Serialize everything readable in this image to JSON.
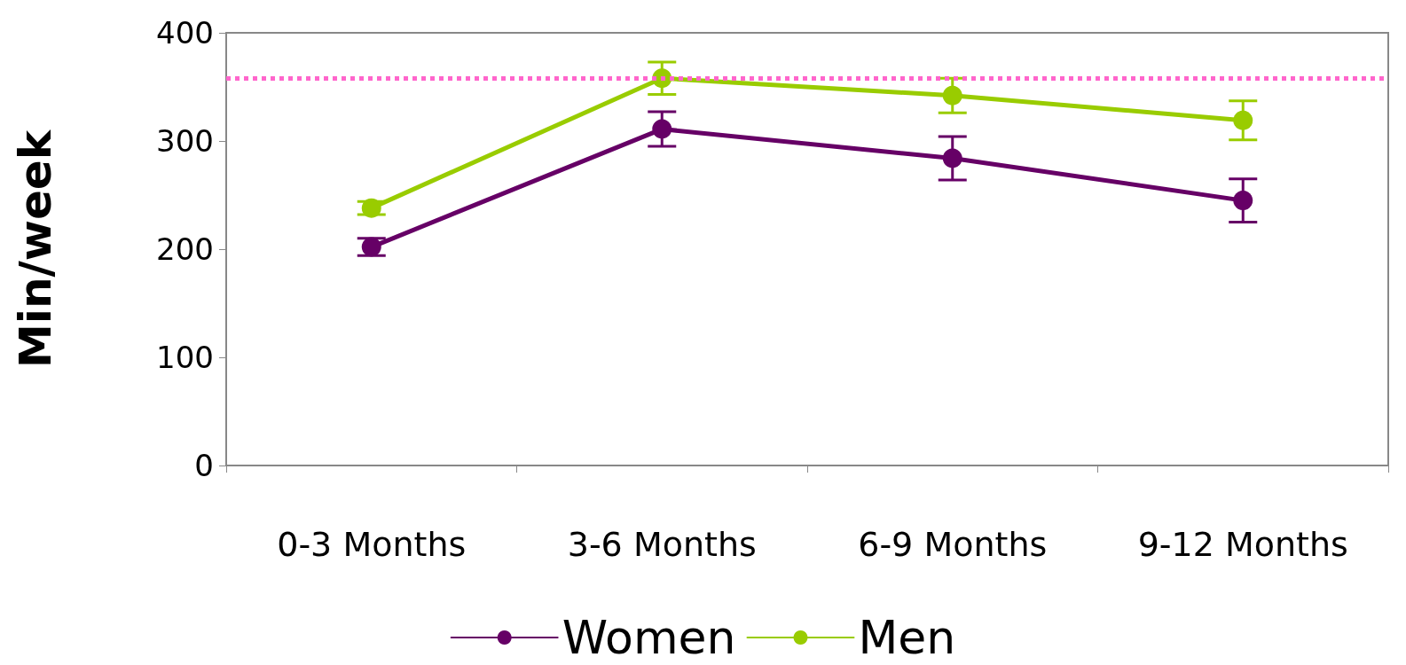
{
  "chart_data": {
    "type": "line",
    "ylabel": "Min/week",
    "categories": [
      "0-3 Months",
      "3-6 Months",
      "6-9 Months",
      "9-12 Months"
    ],
    "series": [
      {
        "name": "Women",
        "color": "#660066",
        "values": [
          202,
          311,
          284,
          245
        ],
        "errors": [
          8,
          16,
          20,
          20
        ]
      },
      {
        "name": "Men",
        "color": "#99cc00",
        "values": [
          238,
          358,
          342,
          319
        ],
        "errors": [
          6,
          15,
          16,
          18
        ]
      }
    ],
    "ylim": [
      0,
      400
    ],
    "yticks": [
      0,
      100,
      200,
      300,
      400
    ],
    "grid": false,
    "legend": "bottom",
    "marker": "circle",
    "line_style": "solid",
    "ref_lines": [
      {
        "axis": "y",
        "value": 358,
        "color": "#ff66cc",
        "line_style": "dotted"
      }
    ]
  }
}
